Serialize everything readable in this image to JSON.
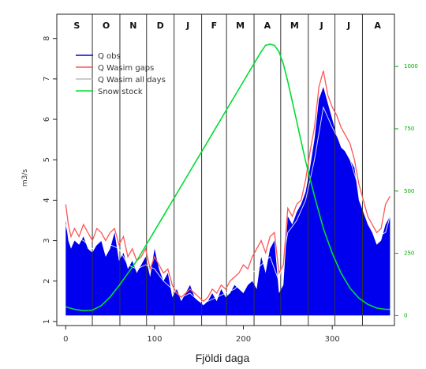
{
  "chart_data": {
    "type": "area",
    "xlabel": "Fjöldi daga",
    "ylabel": "m3/s",
    "xlim": [
      -10,
      370
    ],
    "ylim": [
      0.9,
      8.6
    ],
    "y2lim": [
      -40,
      1210
    ],
    "x_ticks": [
      0,
      100,
      200,
      300
    ],
    "y_ticks": [
      1,
      2,
      3,
      4,
      5,
      6,
      7,
      8
    ],
    "y2_ticks": [
      0,
      250,
      500,
      750,
      1000
    ],
    "months": [
      "S",
      "O",
      "N",
      "D",
      "J",
      "F",
      "M",
      "A",
      "M",
      "J",
      "J",
      "A"
    ],
    "month_boundaries": [
      30,
      61,
      91,
      122,
      153,
      181,
      212,
      242,
      273,
      303,
      334
    ],
    "legend": [
      "Q obs",
      "Q Wasim gaps",
      "Q Wasim all days",
      "Snow stock"
    ],
    "legend_position": "top-left",
    "colors": {
      "q_obs": "#0000ee",
      "q_wasim_gaps": "#ff5555",
      "q_wasim_all": "#ffffff",
      "snow": "#00dd33"
    },
    "series": [
      {
        "name": "Q obs",
        "x": [
          0,
          3,
          6,
          10,
          15,
          20,
          25,
          30,
          35,
          40,
          45,
          50,
          55,
          60,
          65,
          70,
          75,
          80,
          85,
          90,
          95,
          100,
          105,
          110,
          115,
          120,
          125,
          130,
          135,
          140,
          145,
          150,
          155,
          160,
          165,
          170,
          175,
          180,
          185,
          190,
          195,
          200,
          205,
          210,
          215,
          220,
          225,
          230,
          235,
          240,
          245,
          250,
          255,
          260,
          265,
          270,
          275,
          280,
          285,
          290,
          295,
          300,
          305,
          310,
          315,
          320,
          325,
          330,
          335,
          340,
          345,
          350,
          355,
          360,
          365
        ],
        "y": [
          3.5,
          3.0,
          2.8,
          3.0,
          2.9,
          3.1,
          2.8,
          2.7,
          2.9,
          3.0,
          2.6,
          2.8,
          3.2,
          2.5,
          2.7,
          2.3,
          2.5,
          2.2,
          2.4,
          2.6,
          2.1,
          2.8,
          2.3,
          2.0,
          2.2,
          1.6,
          1.8,
          1.5,
          1.7,
          1.9,
          1.6,
          1.5,
          1.4,
          1.5,
          1.7,
          1.5,
          1.8,
          1.6,
          1.7,
          1.9,
          1.8,
          1.7,
          1.9,
          2.0,
          1.8,
          2.6,
          2.2,
          2.8,
          3.0,
          1.7,
          1.9,
          3.6,
          3.4,
          3.7,
          3.9,
          4.2,
          4.8,
          5.5,
          6.5,
          6.8,
          6.4,
          6.0,
          5.6,
          5.3,
          5.2,
          5.0,
          4.8,
          4.0,
          3.7,
          3.4,
          3.2,
          2.9,
          3.0,
          3.4,
          3.6
        ]
      },
      {
        "name": "Q Wasim gaps",
        "x": [
          0,
          3,
          6,
          10,
          15,
          20,
          25,
          30,
          35,
          40,
          45,
          50,
          55,
          60,
          65,
          70,
          75,
          80,
          85,
          90,
          95,
          100,
          105,
          110,
          115,
          120,
          125,
          130,
          135,
          140,
          145,
          150,
          155,
          160,
          165,
          170,
          175,
          180,
          185,
          190,
          195,
          200,
          205,
          210,
          215,
          220,
          225,
          230,
          235,
          240,
          245,
          250,
          255,
          260,
          265,
          270,
          275,
          280,
          285,
          290,
          295,
          300,
          305,
          310,
          315,
          320,
          325,
          330,
          335,
          340,
          345,
          350,
          355,
          360,
          365
        ],
        "y": [
          3.9,
          3.4,
          3.1,
          3.3,
          3.1,
          3.4,
          3.2,
          3.0,
          3.3,
          3.2,
          3.0,
          3.2,
          3.3,
          2.9,
          3.1,
          2.6,
          2.8,
          2.5,
          2.6,
          2.8,
          2.3,
          2.6,
          2.4,
          2.2,
          2.3,
          1.9,
          1.7,
          1.6,
          1.7,
          1.8,
          1.7,
          1.6,
          1.5,
          1.6,
          1.8,
          1.7,
          1.9,
          1.8,
          2.0,
          2.1,
          2.2,
          2.4,
          2.3,
          2.6,
          2.8,
          3.0,
          2.7,
          3.1,
          3.2,
          2.2,
          2.4,
          3.8,
          3.6,
          3.9,
          4.0,
          4.5,
          5.2,
          5.8,
          6.8,
          7.2,
          6.6,
          6.3,
          6.1,
          5.8,
          5.6,
          5.4,
          5.0,
          4.4,
          4.0,
          3.6,
          3.4,
          3.2,
          3.3,
          3.9,
          4.1
        ]
      },
      {
        "name": "Q Wasim all days",
        "x": [
          0,
          5,
          10,
          20,
          30,
          40,
          50,
          60,
          70,
          80,
          90,
          100,
          110,
          120,
          130,
          140,
          150,
          160,
          170,
          180,
          190,
          200,
          210,
          220,
          230,
          240,
          250,
          260,
          270,
          280,
          290,
          300,
          310,
          320,
          330,
          340,
          350,
          360,
          365
        ],
        "y": [
          3.4,
          3.0,
          3.1,
          3.0,
          2.8,
          3.0,
          2.9,
          2.8,
          2.4,
          2.3,
          2.4,
          2.3,
          2.0,
          1.8,
          1.6,
          1.7,
          1.5,
          1.5,
          1.6,
          1.7,
          1.8,
          2.0,
          2.2,
          2.4,
          2.6,
          2.0,
          3.2,
          3.5,
          4.0,
          5.0,
          6.3,
          5.8,
          5.4,
          5.0,
          4.3,
          3.6,
          3.1,
          3.2,
          3.6
        ]
      },
      {
        "name": "Snow stock",
        "x": [
          0,
          10,
          20,
          30,
          40,
          50,
          60,
          70,
          80,
          90,
          100,
          110,
          120,
          130,
          140,
          150,
          160,
          170,
          180,
          190,
          200,
          210,
          220,
          225,
          230,
          235,
          240,
          245,
          250,
          255,
          260,
          265,
          270,
          280,
          290,
          300,
          310,
          320,
          330,
          340,
          350,
          360,
          365
        ],
        "y": [
          35,
          25,
          20,
          22,
          40,
          75,
          120,
          170,
          220,
          280,
          340,
          400,
          460,
          520,
          580,
          640,
          700,
          760,
          820,
          880,
          940,
          1000,
          1060,
          1085,
          1090,
          1085,
          1060,
          1010,
          940,
          860,
          780,
          700,
          620,
          480,
          350,
          250,
          170,
          110,
          70,
          45,
          30,
          25,
          25
        ]
      }
    ]
  }
}
